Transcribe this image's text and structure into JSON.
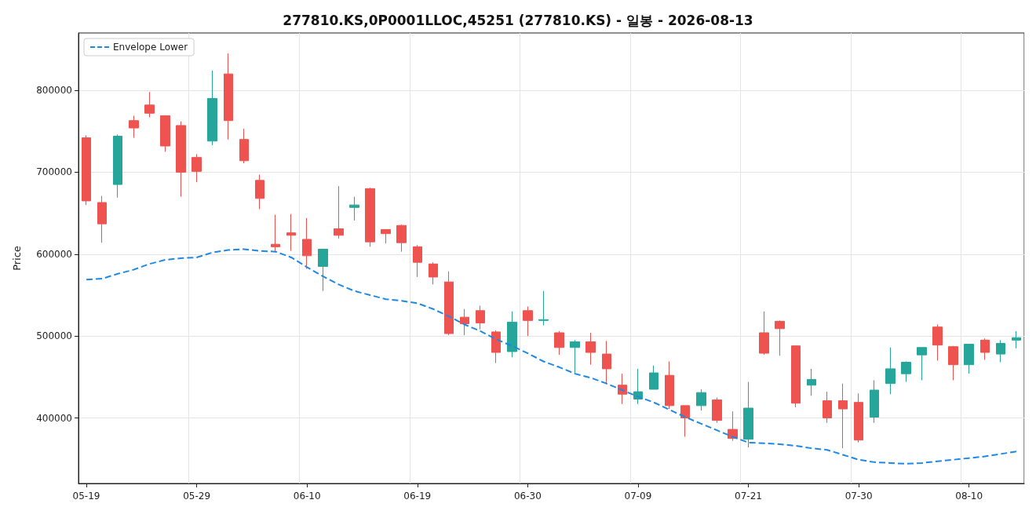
{
  "chart_data": {
    "type": "candlestick",
    "title": "277810.KS,0P0001LLOC,45251 (277810.KS) - 일봉 - 2026-08-13",
    "ylabel": "Price",
    "categories": [
      "05-19",
      null,
      null,
      null,
      null,
      null,
      null,
      "05-29",
      null,
      null,
      null,
      null,
      null,
      null,
      "06-10",
      null,
      null,
      null,
      null,
      null,
      null,
      "06-19",
      null,
      null,
      null,
      null,
      null,
      null,
      "06-30",
      null,
      null,
      null,
      null,
      null,
      null,
      "07-09",
      null,
      null,
      null,
      null,
      null,
      null,
      "07-21",
      null,
      null,
      null,
      null,
      null,
      null,
      "07-30",
      null,
      null,
      null,
      null,
      null,
      null,
      "08-10",
      null,
      null,
      null
    ],
    "ohlc": [
      [
        742000,
        745000,
        660000,
        665000
      ],
      [
        663000,
        671000,
        614000,
        637000
      ],
      [
        685000,
        746000,
        669000,
        744000
      ],
      [
        763000,
        769000,
        742000,
        754000
      ],
      [
        782000,
        798000,
        767000,
        772000
      ],
      [
        769000,
        769000,
        725000,
        732000
      ],
      [
        757000,
        762000,
        670000,
        700000
      ],
      [
        718000,
        722000,
        688000,
        701000
      ],
      [
        738000,
        824000,
        733000,
        790000
      ],
      [
        820000,
        845000,
        740000,
        763000
      ],
      [
        740000,
        753000,
        711000,
        714000
      ],
      [
        690000,
        697000,
        655000,
        668000
      ],
      [
        612000,
        648000,
        603000,
        609000
      ],
      [
        626000,
        649000,
        604000,
        623000
      ],
      [
        618000,
        644000,
        582000,
        598000
      ],
      [
        585000,
        606000,
        555000,
        606000
      ],
      [
        631000,
        683000,
        619000,
        623000
      ],
      [
        657000,
        670000,
        641000,
        660000
      ],
      [
        680000,
        681000,
        609000,
        615000
      ],
      [
        630000,
        630000,
        613000,
        625000
      ],
      [
        635000,
        636000,
        603000,
        614000
      ],
      [
        609000,
        611000,
        572000,
        590000
      ],
      [
        588000,
        590000,
        563000,
        572000
      ],
      [
        566000,
        579000,
        501000,
        503000
      ],
      [
        523000,
        533000,
        501000,
        515000
      ],
      [
        531000,
        537000,
        508000,
        516000
      ],
      [
        505000,
        507000,
        467000,
        480000
      ],
      [
        481000,
        530000,
        474000,
        517000
      ],
      [
        531000,
        536000,
        500000,
        519000
      ],
      [
        519000,
        555000,
        513000,
        520000
      ],
      [
        504000,
        506000,
        477000,
        486000
      ],
      [
        486000,
        495000,
        454000,
        493000
      ],
      [
        493000,
        504000,
        465000,
        480000
      ],
      [
        478000,
        494000,
        441000,
        460000
      ],
      [
        440000,
        454000,
        417000,
        429000
      ],
      [
        423000,
        460000,
        417000,
        432000
      ],
      [
        435000,
        464000,
        435000,
        455000
      ],
      [
        452000,
        469000,
        411000,
        415000
      ],
      [
        415000,
        415000,
        377000,
        400000
      ],
      [
        415000,
        435000,
        409000,
        431000
      ],
      [
        422000,
        425000,
        394000,
        397000
      ],
      [
        386000,
        408000,
        372000,
        375000
      ],
      [
        374000,
        444000,
        364000,
        412000
      ],
      [
        504000,
        530000,
        477000,
        479000
      ],
      [
        518000,
        519000,
        476000,
        509000
      ],
      [
        488000,
        488000,
        413000,
        418000
      ],
      [
        440000,
        460000,
        427000,
        447000
      ],
      [
        421000,
        432000,
        394000,
        400000
      ],
      [
        421000,
        442000,
        363000,
        411000
      ],
      [
        419000,
        430000,
        370000,
        373000
      ],
      [
        401000,
        446000,
        394000,
        434000
      ],
      [
        442000,
        486000,
        429000,
        460000
      ],
      [
        454000,
        469000,
        444000,
        468000
      ],
      [
        477000,
        486000,
        446000,
        486000
      ],
      [
        511000,
        514000,
        470000,
        489000
      ],
      [
        487000,
        488000,
        446000,
        465000
      ],
      [
        465000,
        490000,
        454000,
        490000
      ],
      [
        495000,
        497000,
        471000,
        480000
      ],
      [
        478000,
        495000,
        468000,
        491000
      ],
      [
        495000,
        506000,
        485000,
        498000
      ]
    ],
    "colors": [
      "#ef5350",
      "#ef5350",
      "#26a69a",
      "#ef5350",
      "#ef5350",
      "#ef5350",
      "#ef5350",
      "#ef5350",
      "#26a69a",
      "#ef5350",
      "#ef5350",
      "#ef5350",
      "#ef5350",
      "#ef5350",
      "#ef5350",
      "#26a69a",
      "#ef5350",
      "#26a69a",
      "#ef5350",
      "#ef5350",
      "#ef5350",
      "#ef5350",
      "#ef5350",
      "#ef5350",
      "#ef5350",
      "#ef5350",
      "#ef5350",
      "#26a69a",
      "#ef5350",
      "#26a69a",
      "#ef5350",
      "#26a69a",
      "#ef5350",
      "#ef5350",
      "#ef5350",
      "#26a69a",
      "#26a69a",
      "#ef5350",
      "#ef5350",
      "#26a69a",
      "#ef5350",
      "#ef5350",
      "#26a69a",
      "#ef5350",
      "#ef5350",
      "#ef5350",
      "#26a69a",
      "#ef5350",
      "#ef5350",
      "#ef5350",
      "#26a69a",
      "#26a69a",
      "#26a69a",
      "#26a69a",
      "#ef5350",
      "#ef5350",
      "#26a69a",
      "#ef5350",
      "#26a69a",
      "#26a69a"
    ],
    "series": [
      {
        "type": "line",
        "name": "Envelope Lower",
        "color": "#1e88e5",
        "line_style": "dashed",
        "marker": "none",
        "values": [
          569000,
          570000,
          576000,
          581000,
          588000,
          593000,
          595000,
          596000,
          602000,
          605000,
          606000,
          604000,
          603000,
          596000,
          584000,
          573000,
          563000,
          555000,
          550000,
          545000,
          543000,
          540000,
          533000,
          524000,
          514000,
          506000,
          496000,
          488000,
          479000,
          469000,
          462000,
          454000,
          449000,
          442000,
          434000,
          426000,
          419000,
          410000,
          401000,
          393000,
          385000,
          377000,
          370000,
          369000,
          368000,
          366000,
          363000,
          361000,
          355000,
          349000,
          346000,
          345000,
          344000,
          345000,
          347000,
          349000,
          351000,
          353000,
          356000,
          359000
        ]
      }
    ],
    "ylim": [
      320000,
      870000
    ],
    "yticks": [
      400000,
      500000,
      600000,
      700000,
      800000
    ],
    "grid": true,
    "legend": "top left"
  }
}
